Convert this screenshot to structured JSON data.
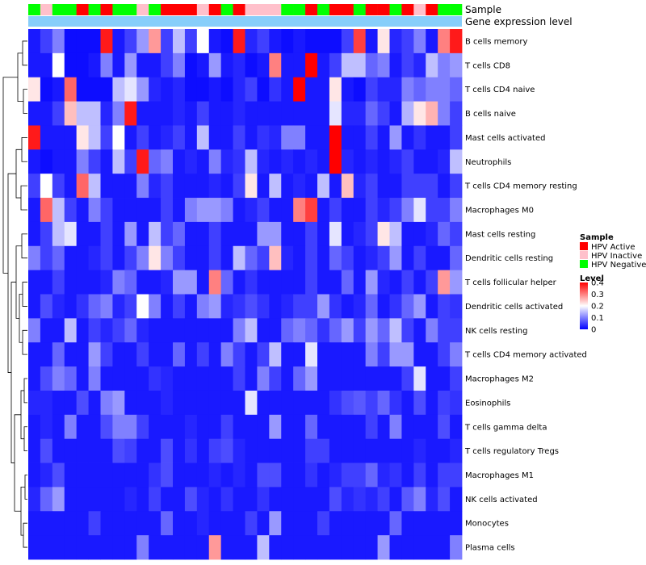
{
  "chart_data": {
    "type": "heatmap",
    "annotations": [
      {
        "name": "Sample",
        "values": [
          "N",
          "I",
          "N",
          "N",
          "A",
          "N",
          "A",
          "N",
          "N",
          "I",
          "N",
          "A",
          "A",
          "A",
          "I",
          "A",
          "N",
          "A",
          "I",
          "I",
          "I",
          "N",
          "N",
          "A",
          "N",
          "A",
          "A",
          "N",
          "A",
          "A",
          "N",
          "A",
          "I",
          "A",
          "N",
          "N"
        ]
      },
      {
        "name": "Gene expression level",
        "values": []
      }
    ],
    "rows": [
      "B cells memory",
      "T cells CD8",
      "T cells CD4 naive",
      "B cells naive",
      "Mast cells activated",
      "Neutrophils",
      "T cells CD4 memory resting",
      "Macrophages M0",
      "Mast cells resting",
      "Dendritic cells resting",
      "T cells follicular helper",
      "Dendritic cells activated",
      "NK cells resting",
      "T cells CD4 memory activated",
      "Macrophages M2",
      "Eosinophils",
      "T cells gamma delta",
      "T cells regulatory  Tregs",
      "Macrophages M1",
      "NK cells activated",
      "Monocytes",
      "Plasma cells"
    ],
    "values": [
      [
        0.02,
        0.05,
        0.1,
        0.01,
        0.01,
        0.01,
        0.38,
        0.02,
        0.05,
        0.12,
        0.28,
        0.05,
        0.15,
        0.05,
        0.2,
        0.02,
        0.01,
        0.38,
        0.03,
        0.05,
        0.02,
        0.01,
        0.02,
        0.01,
        0.01,
        0.01,
        0.05,
        0.35,
        0.02,
        0.22,
        0.03,
        0.05,
        0.1,
        0.02,
        0.3,
        0.38
      ],
      [
        0.02,
        0.02,
        0.2,
        0.01,
        0.01,
        0.02,
        0.1,
        0.02,
        0.12,
        0.02,
        0.02,
        0.05,
        0.1,
        0.01,
        0.02,
        0.12,
        0.02,
        0.03,
        0.01,
        0.02,
        0.3,
        0.02,
        0.02,
        0.4,
        0.02,
        0.05,
        0.15,
        0.15,
        0.08,
        0.1,
        0.02,
        0.05,
        0.03,
        0.15,
        0.1,
        0.12
      ],
      [
        0.22,
        0.01,
        0.02,
        0.32,
        0.01,
        0.01,
        0.01,
        0.15,
        0.18,
        0.12,
        0.03,
        0.02,
        0.03,
        0.01,
        0.01,
        0.02,
        0.01,
        0.03,
        0.05,
        0.01,
        0.04,
        0.02,
        0.4,
        0.02,
        0.02,
        0.22,
        0.02,
        0.01,
        0.05,
        0.03,
        0.03,
        0.1,
        0.08,
        0.1,
        0.1,
        0.08
      ],
      [
        0.02,
        0.02,
        0.05,
        0.25,
        0.15,
        0.15,
        0.03,
        0.1,
        0.38,
        0.02,
        0.02,
        0.02,
        0.03,
        0.02,
        0.05,
        0.02,
        0.02,
        0.03,
        0.02,
        0.02,
        0.02,
        0.02,
        0.02,
        0.02,
        0.02,
        0.18,
        0.03,
        0.03,
        0.08,
        0.05,
        0.02,
        0.14,
        0.22,
        0.26,
        0.1,
        0.05
      ],
      [
        0.38,
        0.02,
        0.02,
        0.02,
        0.22,
        0.15,
        0.05,
        0.2,
        0.02,
        0.05,
        0.02,
        0.03,
        0.05,
        0.02,
        0.15,
        0.02,
        0.02,
        0.05,
        0.02,
        0.04,
        0.03,
        0.1,
        0.1,
        0.02,
        0.02,
        0.4,
        0.02,
        0.02,
        0.05,
        0.02,
        0.12,
        0.02,
        0.04,
        0.02,
        0.02,
        0.05
      ],
      [
        0.02,
        0.01,
        0.02,
        0.02,
        0.1,
        0.05,
        0.02,
        0.15,
        0.05,
        0.38,
        0.08,
        0.1,
        0.02,
        0.03,
        0.02,
        0.1,
        0.03,
        0.04,
        0.15,
        0.03,
        0.02,
        0.03,
        0.02,
        0.03,
        0.02,
        0.4,
        0.03,
        0.02,
        0.03,
        0.02,
        0.03,
        0.05,
        0.02,
        0.02,
        0.03,
        0.15
      ],
      [
        0.05,
        0.2,
        0.05,
        0.02,
        0.32,
        0.15,
        0.02,
        0.02,
        0.02,
        0.1,
        0.03,
        0.05,
        0.02,
        0.02,
        0.02,
        0.03,
        0.02,
        0.05,
        0.22,
        0.02,
        0.15,
        0.02,
        0.03,
        0.02,
        0.15,
        0.02,
        0.25,
        0.03,
        0.05,
        0.02,
        0.02,
        0.05,
        0.05,
        0.05,
        0.02,
        0.05
      ],
      [
        0.02,
        0.32,
        0.15,
        0.05,
        0.02,
        0.1,
        0.05,
        0.02,
        0.02,
        0.02,
        0.02,
        0.05,
        0.02,
        0.1,
        0.12,
        0.12,
        0.1,
        0.02,
        0.03,
        0.05,
        0.02,
        0.02,
        0.3,
        0.35,
        0.02,
        0.05,
        0.02,
        0.02,
        0.05,
        0.03,
        0.05,
        0.1,
        0.18,
        0.05,
        0.05,
        0.1
      ],
      [
        0.02,
        0.05,
        0.15,
        0.18,
        0.02,
        0.02,
        0.05,
        0.02,
        0.12,
        0.02,
        0.15,
        0.05,
        0.08,
        0.02,
        0.02,
        0.05,
        0.02,
        0.02,
        0.02,
        0.12,
        0.12,
        0.02,
        0.02,
        0.05,
        0.02,
        0.18,
        0.02,
        0.03,
        0.05,
        0.22,
        0.15,
        0.02,
        0.02,
        0.03,
        0.08,
        0.05
      ],
      [
        0.1,
        0.05,
        0.08,
        0.02,
        0.02,
        0.03,
        0.05,
        0.02,
        0.05,
        0.1,
        0.22,
        0.1,
        0.05,
        0.02,
        0.02,
        0.05,
        0.02,
        0.15,
        0.08,
        0.05,
        0.25,
        0.03,
        0.02,
        0.05,
        0.02,
        0.08,
        0.05,
        0.02,
        0.03,
        0.05,
        0.12,
        0.02,
        0.05,
        0.02,
        0.02,
        0.08
      ],
      [
        0.02,
        0.02,
        0.05,
        0.02,
        0.02,
        0.02,
        0.03,
        0.1,
        0.08,
        0.02,
        0.02,
        0.03,
        0.12,
        0.12,
        0.02,
        0.3,
        0.08,
        0.02,
        0.04,
        0.02,
        0.02,
        0.02,
        0.02,
        0.05,
        0.02,
        0.02,
        0.08,
        0.02,
        0.12,
        0.03,
        0.02,
        0.05,
        0.02,
        0.05,
        0.28,
        0.12
      ],
      [
        0.02,
        0.06,
        0.03,
        0.02,
        0.04,
        0.08,
        0.1,
        0.03,
        0.05,
        0.2,
        0.1,
        0.02,
        0.05,
        0.02,
        0.1,
        0.12,
        0.03,
        0.04,
        0.06,
        0.04,
        0.02,
        0.03,
        0.05,
        0.05,
        0.12,
        0.04,
        0.02,
        0.03,
        0.08,
        0.02,
        0.04,
        0.08,
        0.12,
        0.02,
        0.05,
        0.04
      ],
      [
        0.1,
        0.02,
        0.02,
        0.15,
        0.02,
        0.05,
        0.03,
        0.05,
        0.08,
        0.03,
        0.02,
        0.02,
        0.02,
        0.02,
        0.02,
        0.02,
        0.02,
        0.1,
        0.15,
        0.02,
        0.02,
        0.08,
        0.1,
        0.08,
        0.04,
        0.08,
        0.12,
        0.05,
        0.12,
        0.08,
        0.15,
        0.05,
        0.02,
        0.1,
        0.05,
        0.05
      ],
      [
        0.02,
        0.02,
        0.08,
        0.02,
        0.02,
        0.12,
        0.05,
        0.02,
        0.02,
        0.05,
        0.02,
        0.02,
        0.08,
        0.02,
        0.05,
        0.02,
        0.1,
        0.05,
        0.02,
        0.05,
        0.15,
        0.02,
        0.02,
        0.18,
        0.02,
        0.02,
        0.02,
        0.02,
        0.1,
        0.05,
        0.12,
        0.12,
        0.02,
        0.02,
        0.05,
        0.1
      ],
      [
        0.02,
        0.06,
        0.1,
        0.08,
        0.02,
        0.1,
        0.02,
        0.02,
        0.02,
        0.02,
        0.04,
        0.03,
        0.02,
        0.02,
        0.02,
        0.02,
        0.02,
        0.05,
        0.02,
        0.1,
        0.05,
        0.02,
        0.08,
        0.12,
        0.02,
        0.02,
        0.02,
        0.02,
        0.02,
        0.02,
        0.02,
        0.05,
        0.18,
        0.02,
        0.02,
        0.05
      ],
      [
        0.03,
        0.03,
        0.02,
        0.02,
        0.06,
        0.02,
        0.1,
        0.12,
        0.02,
        0.02,
        0.02,
        0.03,
        0.02,
        0.02,
        0.02,
        0.02,
        0.02,
        0.02,
        0.18,
        0.02,
        0.02,
        0.02,
        0.02,
        0.02,
        0.02,
        0.04,
        0.06,
        0.07,
        0.05,
        0.08,
        0.04,
        0.02,
        0.06,
        0.02,
        0.05,
        0.04
      ],
      [
        0.02,
        0.03,
        0.02,
        0.1,
        0.02,
        0.02,
        0.06,
        0.1,
        0.1,
        0.05,
        0.02,
        0.02,
        0.02,
        0.03,
        0.02,
        0.02,
        0.05,
        0.02,
        0.02,
        0.02,
        0.12,
        0.02,
        0.02,
        0.08,
        0.02,
        0.02,
        0.02,
        0.02,
        0.05,
        0.02,
        0.1,
        0.02,
        0.02,
        0.02,
        0.06,
        0.02
      ],
      [
        0.02,
        0.06,
        0.02,
        0.02,
        0.02,
        0.02,
        0.02,
        0.06,
        0.05,
        0.02,
        0.02,
        0.06,
        0.02,
        0.04,
        0.02,
        0.05,
        0.06,
        0.03,
        0.02,
        0.02,
        0.02,
        0.02,
        0.02,
        0.05,
        0.05,
        0.02,
        0.02,
        0.02,
        0.02,
        0.02,
        0.02,
        0.02,
        0.03,
        0.02,
        0.02,
        0.03
      ],
      [
        0.02,
        0.03,
        0.06,
        0.02,
        0.02,
        0.02,
        0.02,
        0.02,
        0.02,
        0.02,
        0.04,
        0.06,
        0.02,
        0.02,
        0.02,
        0.03,
        0.02,
        0.03,
        0.02,
        0.06,
        0.06,
        0.02,
        0.02,
        0.04,
        0.02,
        0.03,
        0.05,
        0.05,
        0.08,
        0.03,
        0.04,
        0.02,
        0.05,
        0.02,
        0.05,
        0.05
      ],
      [
        0.03,
        0.08,
        0.12,
        0.02,
        0.02,
        0.02,
        0.02,
        0.02,
        0.03,
        0.02,
        0.05,
        0.02,
        0.02,
        0.06,
        0.03,
        0.02,
        0.04,
        0.02,
        0.02,
        0.04,
        0.02,
        0.02,
        0.02,
        0.02,
        0.02,
        0.06,
        0.03,
        0.04,
        0.03,
        0.05,
        0.02,
        0.07,
        0.1,
        0.03,
        0.06,
        0.02
      ],
      [
        0.02,
        0.02,
        0.02,
        0.02,
        0.02,
        0.05,
        0.02,
        0.02,
        0.02,
        0.02,
        0.02,
        0.08,
        0.02,
        0.02,
        0.03,
        0.02,
        0.02,
        0.02,
        0.05,
        0.02,
        0.12,
        0.02,
        0.02,
        0.02,
        0.05,
        0.02,
        0.02,
        0.02,
        0.02,
        0.02,
        0.08,
        0.02,
        0.02,
        0.02,
        0.02,
        0.02
      ],
      [
        0.02,
        0.02,
        0.02,
        0.02,
        0.02,
        0.02,
        0.02,
        0.02,
        0.02,
        0.1,
        0.02,
        0.02,
        0.02,
        0.02,
        0.02,
        0.28,
        0.02,
        0.02,
        0.02,
        0.15,
        0.02,
        0.02,
        0.02,
        0.02,
        0.02,
        0.02,
        0.02,
        0.02,
        0.02,
        0.12,
        0.02,
        0.02,
        0.02,
        0.02,
        0.02,
        0.1
      ]
    ],
    "color_scale": {
      "low": "#0000ff",
      "mid": "#ffffff",
      "high": "#ff0000",
      "min": 0,
      "max": 0.4
    },
    "legend_sample": {
      "title": "Sample",
      "items": [
        {
          "code": "A",
          "label": "HPV Active",
          "color": "#ff0000"
        },
        {
          "code": "I",
          "label": "HPV Inactive",
          "color": "#ffc0cb"
        },
        {
          "code": "N",
          "label": "HPV Negative",
          "color": "#00ff00"
        }
      ]
    },
    "legend_level": {
      "title": "Level",
      "ticks": [
        "0.4",
        "0.3",
        "0.2",
        "0.1",
        "0"
      ],
      "tick_values": [
        0.4,
        0.3,
        0.2,
        0.1,
        0
      ]
    },
    "gene_bar_color": "#87cefa"
  }
}
